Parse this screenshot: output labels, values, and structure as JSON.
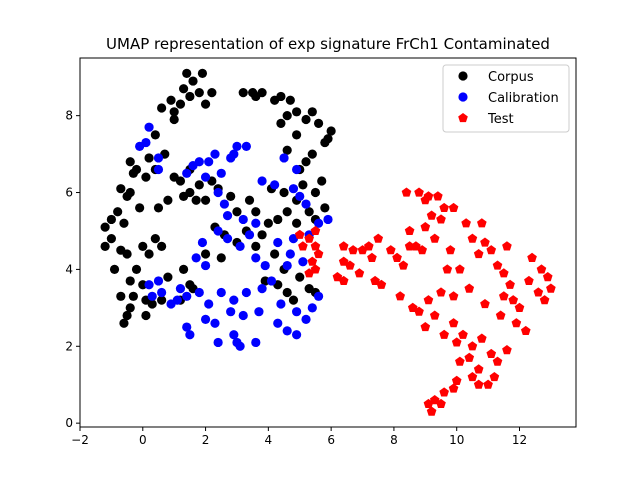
{
  "chart_data": {
    "type": "scatter",
    "title": "UMAP representation of exp signature FrCh1 Contaminated",
    "xlabel": "",
    "ylabel": "",
    "xlim": [
      -2,
      13.8
    ],
    "ylim": [
      -0.1,
      9.5
    ],
    "xticks": [
      -2,
      0,
      2,
      4,
      6,
      8,
      10,
      12
    ],
    "yticks": [
      0,
      2,
      4,
      6,
      8
    ],
    "grid": false,
    "legend_position": "upper-right",
    "series": [
      {
        "name": "Corpus",
        "color": "#000000",
        "marker": "circle",
        "points": [
          [
            1.4,
            9.1
          ],
          [
            1.9,
            9.1
          ],
          [
            1.6,
            8.9
          ],
          [
            1.3,
            8.7
          ],
          [
            1.8,
            8.6
          ],
          [
            2.2,
            8.6
          ],
          [
            1.5,
            8.5
          ],
          [
            0.9,
            8.4
          ],
          [
            2.0,
            8.3
          ],
          [
            3.2,
            8.6
          ],
          [
            3.5,
            8.6
          ],
          [
            3.8,
            8.6
          ],
          [
            3.6,
            8.5
          ],
          [
            4.4,
            8.5
          ],
          [
            4.2,
            8.4
          ],
          [
            1.2,
            8.3
          ],
          [
            0.6,
            8.2
          ],
          [
            1.0,
            8.1
          ],
          [
            4.7,
            8.4
          ],
          [
            4.9,
            8.1
          ],
          [
            5.4,
            8.1
          ],
          [
            4.6,
            8.0
          ],
          [
            5.2,
            7.9
          ],
          [
            5.6,
            7.8
          ],
          [
            6.0,
            7.6
          ],
          [
            5.9,
            7.4
          ],
          [
            5.8,
            7.3
          ],
          [
            4.4,
            7.8
          ],
          [
            4.9,
            7.5
          ],
          [
            1.0,
            7.9
          ],
          [
            0.4,
            7.5
          ],
          [
            0.7,
            7.0
          ],
          [
            0.2,
            6.9
          ],
          [
            0.4,
            6.6
          ],
          [
            0.1,
            6.4
          ],
          [
            -0.2,
            6.6
          ],
          [
            -0.4,
            6.8
          ],
          [
            -0.3,
            6.5
          ],
          [
            -0.7,
            6.1
          ],
          [
            -0.4,
            6.0
          ],
          [
            -0.5,
            5.9
          ],
          [
            -0.1,
            5.6
          ],
          [
            -0.6,
            5.2
          ],
          [
            -0.8,
            5.5
          ],
          [
            -1.0,
            5.3
          ],
          [
            -1.2,
            5.1
          ],
          [
            -1.0,
            4.8
          ],
          [
            -1.2,
            4.6
          ],
          [
            -0.7,
            4.5
          ],
          [
            -0.5,
            4.4
          ],
          [
            -0.9,
            4.0
          ],
          [
            0.4,
            4.8
          ],
          [
            0.6,
            4.6
          ],
          [
            0.2,
            4.4
          ],
          [
            0.0,
            4.6
          ],
          [
            -0.2,
            4.0
          ],
          [
            0.0,
            3.6
          ],
          [
            -0.4,
            3.7
          ],
          [
            -0.7,
            3.3
          ],
          [
            -0.3,
            3.3
          ],
          [
            0.1,
            3.2
          ],
          [
            0.3,
            3.1
          ],
          [
            -0.4,
            3.0
          ],
          [
            -0.5,
            2.8
          ],
          [
            -0.6,
            2.6
          ],
          [
            0.1,
            2.8
          ],
          [
            1.0,
            6.4
          ],
          [
            1.5,
            6.6
          ],
          [
            1.2,
            6.3
          ],
          [
            1.5,
            6.0
          ],
          [
            1.8,
            6.2
          ],
          [
            2.2,
            6.3
          ],
          [
            2.4,
            6.1
          ],
          [
            1.3,
            5.9
          ],
          [
            1.7,
            5.8
          ],
          [
            2.0,
            5.8
          ],
          [
            0.8,
            5.8
          ],
          [
            0.5,
            5.6
          ],
          [
            2.8,
            5.9
          ],
          [
            3.0,
            5.5
          ],
          [
            3.4,
            5.8
          ],
          [
            3.6,
            5.5
          ],
          [
            4.1,
            6.1
          ],
          [
            4.5,
            6.0
          ],
          [
            4.9,
            5.8
          ],
          [
            4.6,
            5.5
          ],
          [
            4.3,
            5.3
          ],
          [
            4.9,
            5.2
          ],
          [
            5.3,
            5.5
          ],
          [
            5.5,
            5.3
          ],
          [
            5.8,
            5.6
          ],
          [
            5.5,
            6.0
          ],
          [
            5.7,
            6.3
          ],
          [
            5.1,
            6.2
          ],
          [
            5.2,
            6.8
          ],
          [
            5.4,
            7.0
          ],
          [
            4.6,
            7.1
          ],
          [
            5.0,
            6.6
          ],
          [
            2.3,
            5.1
          ],
          [
            2.6,
            4.9
          ],
          [
            2.0,
            4.4
          ],
          [
            2.5,
            4.3
          ],
          [
            3.0,
            4.7
          ],
          [
            3.3,
            5.0
          ],
          [
            3.8,
            4.9
          ],
          [
            4.0,
            5.2
          ],
          [
            3.6,
            4.6
          ],
          [
            4.2,
            4.4
          ],
          [
            4.5,
            4.0
          ],
          [
            3.9,
            3.7
          ],
          [
            4.3,
            3.6
          ],
          [
            4.6,
            3.4
          ],
          [
            4.8,
            3.2
          ],
          [
            5.3,
            3.5
          ],
          [
            5.0,
            3.8
          ],
          [
            5.5,
            3.4
          ],
          [
            1.3,
            4.0
          ],
          [
            1.5,
            3.6
          ],
          [
            1.2,
            3.2
          ],
          [
            0.8,
            3.8
          ],
          [
            0.6,
            3.2
          ],
          [
            1.6,
            3.5
          ]
        ]
      },
      {
        "name": "Calibration",
        "color": "#0000ff",
        "marker": "circle",
        "points": [
          [
            0.2,
            7.7
          ],
          [
            0.1,
            7.3
          ],
          [
            -0.1,
            7.2
          ],
          [
            0.5,
            6.9
          ],
          [
            0.5,
            6.6
          ],
          [
            1.6,
            6.7
          ],
          [
            1.8,
            6.8
          ],
          [
            2.1,
            6.8
          ],
          [
            2.3,
            7.0
          ],
          [
            1.4,
            6.5
          ],
          [
            2.0,
            6.4
          ],
          [
            2.5,
            6.5
          ],
          [
            2.8,
            6.9
          ],
          [
            3.0,
            7.2
          ],
          [
            2.9,
            7.0
          ],
          [
            3.3,
            7.2
          ],
          [
            4.5,
            6.9
          ],
          [
            4.9,
            6.6
          ],
          [
            3.8,
            6.3
          ],
          [
            4.2,
            6.2
          ],
          [
            4.8,
            6.1
          ],
          [
            5.0,
            5.9
          ],
          [
            5.2,
            5.7
          ],
          [
            5.6,
            5.2
          ],
          [
            5.9,
            5.3
          ],
          [
            2.4,
            6.0
          ],
          [
            2.6,
            5.7
          ],
          [
            2.7,
            5.4
          ],
          [
            3.2,
            5.3
          ],
          [
            2.4,
            5.0
          ],
          [
            2.7,
            4.8
          ],
          [
            3.1,
            4.6
          ],
          [
            3.4,
            4.9
          ],
          [
            3.6,
            4.3
          ],
          [
            3.9,
            4.1
          ],
          [
            4.3,
            4.7
          ],
          [
            4.7,
            4.4
          ],
          [
            5.1,
            4.2
          ],
          [
            5.3,
            4.9
          ],
          [
            4.8,
            4.8
          ],
          [
            4.6,
            4.1
          ],
          [
            4.1,
            3.7
          ],
          [
            3.8,
            3.5
          ],
          [
            3.3,
            3.4
          ],
          [
            2.9,
            3.2
          ],
          [
            2.5,
            3.4
          ],
          [
            2.1,
            3.1
          ],
          [
            1.8,
            3.4
          ],
          [
            1.4,
            3.3
          ],
          [
            1.2,
            3.5
          ],
          [
            1.1,
            3.2
          ],
          [
            0.9,
            3.1
          ],
          [
            0.6,
            3.4
          ],
          [
            0.3,
            3.3
          ],
          [
            0.2,
            3.6
          ],
          [
            0.5,
            3.7
          ],
          [
            1.4,
            2.5
          ],
          [
            1.5,
            2.3
          ],
          [
            2.0,
            2.7
          ],
          [
            2.3,
            2.6
          ],
          [
            2.8,
            2.9
          ],
          [
            3.2,
            2.8
          ],
          [
            3.7,
            2.9
          ],
          [
            2.4,
            2.1
          ],
          [
            2.9,
            2.3
          ],
          [
            3.0,
            2.1
          ],
          [
            3.1,
            2.0
          ],
          [
            3.6,
            2.1
          ],
          [
            4.3,
            2.6
          ],
          [
            4.6,
            2.4
          ],
          [
            4.9,
            2.3
          ],
          [
            5.2,
            2.7
          ],
          [
            5.4,
            3.0
          ],
          [
            5.6,
            3.3
          ],
          [
            4.9,
            2.9
          ],
          [
            4.4,
            3.1
          ],
          [
            2.0,
            4.1
          ],
          [
            1.9,
            4.7
          ],
          [
            1.7,
            4.3
          ],
          [
            3.6,
            5.2
          ]
        ]
      },
      {
        "name": "Test",
        "color": "#ff0000",
        "marker": "pentagon",
        "points": [
          [
            5.0,
            4.9
          ],
          [
            5.1,
            4.6
          ],
          [
            5.3,
            4.8
          ],
          [
            5.5,
            4.6
          ],
          [
            5.5,
            5.0
          ],
          [
            5.6,
            4.4
          ],
          [
            5.4,
            4.2
          ],
          [
            5.5,
            4.0
          ],
          [
            5.3,
            3.9
          ],
          [
            6.4,
            4.6
          ],
          [
            6.7,
            4.5
          ],
          [
            6.4,
            4.2
          ],
          [
            6.6,
            4.1
          ],
          [
            6.2,
            3.8
          ],
          [
            6.4,
            3.7
          ],
          [
            6.9,
            3.9
          ],
          [
            7.0,
            4.5
          ],
          [
            7.2,
            4.6
          ],
          [
            7.5,
            4.8
          ],
          [
            7.3,
            4.3
          ],
          [
            7.4,
            3.7
          ],
          [
            7.6,
            3.6
          ],
          [
            7.9,
            4.5
          ],
          [
            8.1,
            4.3
          ],
          [
            8.3,
            4.1
          ],
          [
            8.5,
            4.6
          ],
          [
            8.7,
            4.6
          ],
          [
            8.4,
            6.0
          ],
          [
            8.8,
            6.0
          ],
          [
            9.0,
            5.8
          ],
          [
            9.1,
            5.9
          ],
          [
            9.4,
            5.9
          ],
          [
            9.6,
            5.6
          ],
          [
            9.5,
            5.3
          ],
          [
            9.9,
            5.6
          ],
          [
            9.2,
            5.4
          ],
          [
            9.0,
            5.1
          ],
          [
            9.3,
            4.8
          ],
          [
            8.9,
            4.5
          ],
          [
            8.5,
            5.0
          ],
          [
            10.3,
            5.2
          ],
          [
            10.8,
            5.2
          ],
          [
            10.5,
            4.8
          ],
          [
            10.9,
            4.7
          ],
          [
            11.1,
            4.5
          ],
          [
            10.7,
            4.4
          ],
          [
            11.3,
            4.1
          ],
          [
            11.5,
            3.9
          ],
          [
            11.7,
            3.6
          ],
          [
            11.5,
            3.3
          ],
          [
            11.8,
            3.2
          ],
          [
            12.0,
            3.0
          ],
          [
            11.4,
            2.8
          ],
          [
            11.9,
            2.6
          ],
          [
            12.2,
            2.4
          ],
          [
            12.4,
            4.3
          ],
          [
            12.7,
            4.0
          ],
          [
            12.9,
            3.8
          ],
          [
            13.0,
            3.5
          ],
          [
            12.6,
            3.4
          ],
          [
            12.8,
            3.2
          ],
          [
            8.2,
            3.3
          ],
          [
            8.6,
            3.0
          ],
          [
            8.8,
            2.9
          ],
          [
            9.1,
            3.2
          ],
          [
            9.5,
            3.4
          ],
          [
            9.3,
            2.8
          ],
          [
            9.0,
            2.5
          ],
          [
            9.6,
            2.3
          ],
          [
            9.9,
            2.6
          ],
          [
            10.2,
            2.3
          ],
          [
            10.0,
            2.1
          ],
          [
            10.5,
            2.0
          ],
          [
            10.8,
            2.2
          ],
          [
            10.4,
            1.7
          ],
          [
            10.1,
            1.6
          ],
          [
            10.7,
            1.4
          ],
          [
            10.5,
            1.2
          ],
          [
            10.0,
            1.1
          ],
          [
            9.9,
            0.9
          ],
          [
            9.6,
            0.8
          ],
          [
            9.3,
            0.6
          ],
          [
            9.5,
            0.5
          ],
          [
            9.1,
            0.5
          ],
          [
            9.2,
            0.3
          ],
          [
            11.1,
            1.8
          ],
          [
            11.3,
            1.6
          ],
          [
            11.6,
            1.9
          ],
          [
            11.2,
            1.2
          ],
          [
            11.0,
            1.0
          ],
          [
            10.9,
            3.1
          ],
          [
            11.6,
            4.6
          ],
          [
            12.3,
            3.7
          ],
          [
            9.8,
            4.5
          ],
          [
            10.1,
            4.0
          ],
          [
            10.7,
            1.0
          ],
          [
            9.7,
            4.0
          ],
          [
            10.4,
            3.5
          ],
          [
            9.9,
            3.3
          ]
        ]
      }
    ]
  }
}
